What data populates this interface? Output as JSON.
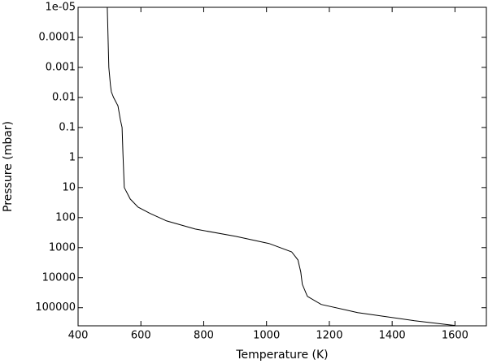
{
  "chart_data": {
    "type": "line",
    "x_label": "Temperature (K)",
    "y_label": "Pressure (mbar)",
    "x": [
      493,
      498,
      503,
      506,
      513,
      527,
      535,
      540,
      543,
      547,
      566,
      591,
      630,
      682,
      773,
      902,
      1008,
      1080,
      1100,
      1109,
      1114,
      1130,
      1174,
      1290,
      1471,
      1600
    ],
    "values": [
      1e-05,
      0.001,
      0.0039,
      0.0065,
      0.01,
      0.019,
      0.057,
      0.1,
      0.78,
      10,
      24,
      45,
      73,
      129,
      240,
      420,
      730,
      1380,
      2570,
      6460,
      16600,
      41700,
      78000,
      145000,
      270000,
      390000
    ],
    "color": "#000000",
    "xlim": [
      400,
      1700
    ],
    "xticks": [
      400,
      600,
      800,
      1000,
      1200,
      1400,
      1600
    ],
    "ylim": [
      1e-05,
      400000
    ],
    "yscale": "log",
    "yinvert": true,
    "yticks": [
      {
        "value": 1e-05,
        "label": "1e-05"
      },
      0.0001,
      0.001,
      0.01,
      0.1,
      1,
      10,
      100,
      1000,
      10000,
      100000
    ]
  }
}
